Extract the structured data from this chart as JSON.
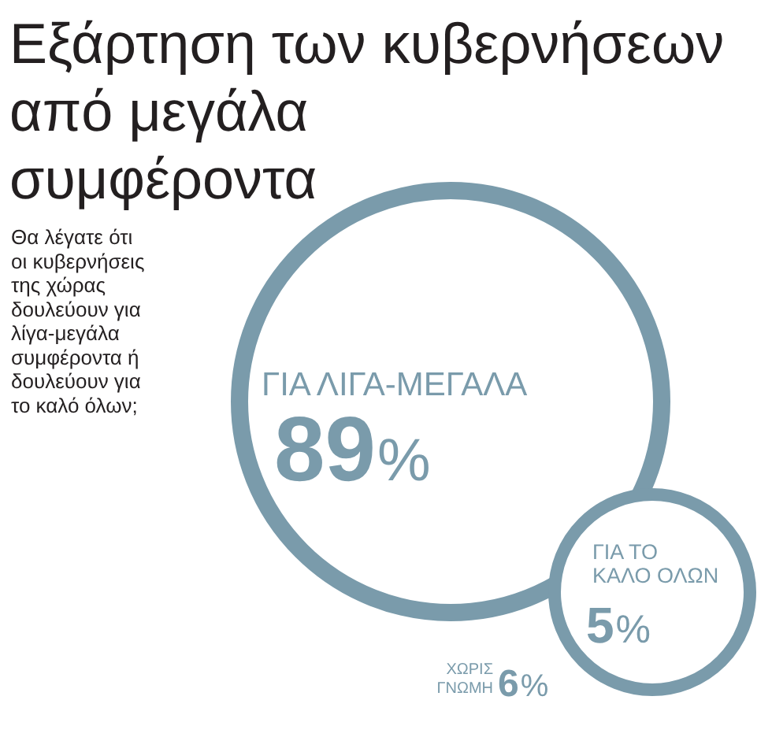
{
  "chart_data": {
    "type": "other",
    "title": "Εξάρτηση των κυβερνήσεων από μεγάλα συμφέροντα",
    "subtitle": "Θα λέγατε ότι οι κυβερνήσεις της χώρας δουλεύουν για λίγα-μεγάλα συμφέροντα ή δουλεύουν για το καλό όλων;",
    "categories": [
      "ΓΙΑ ΛΙΓΑ-ΜΕΓΑΛΑ",
      "ΓΙΑ ΤΟ ΚΑΛΟ ΟΛΩΝ",
      "ΧΩΡΙΣ ΓΝΩΜΗ"
    ],
    "values": [
      89,
      5,
      6
    ],
    "value_labels": [
      "89%",
      "5%",
      "6%"
    ],
    "color": "#7a9bab"
  }
}
